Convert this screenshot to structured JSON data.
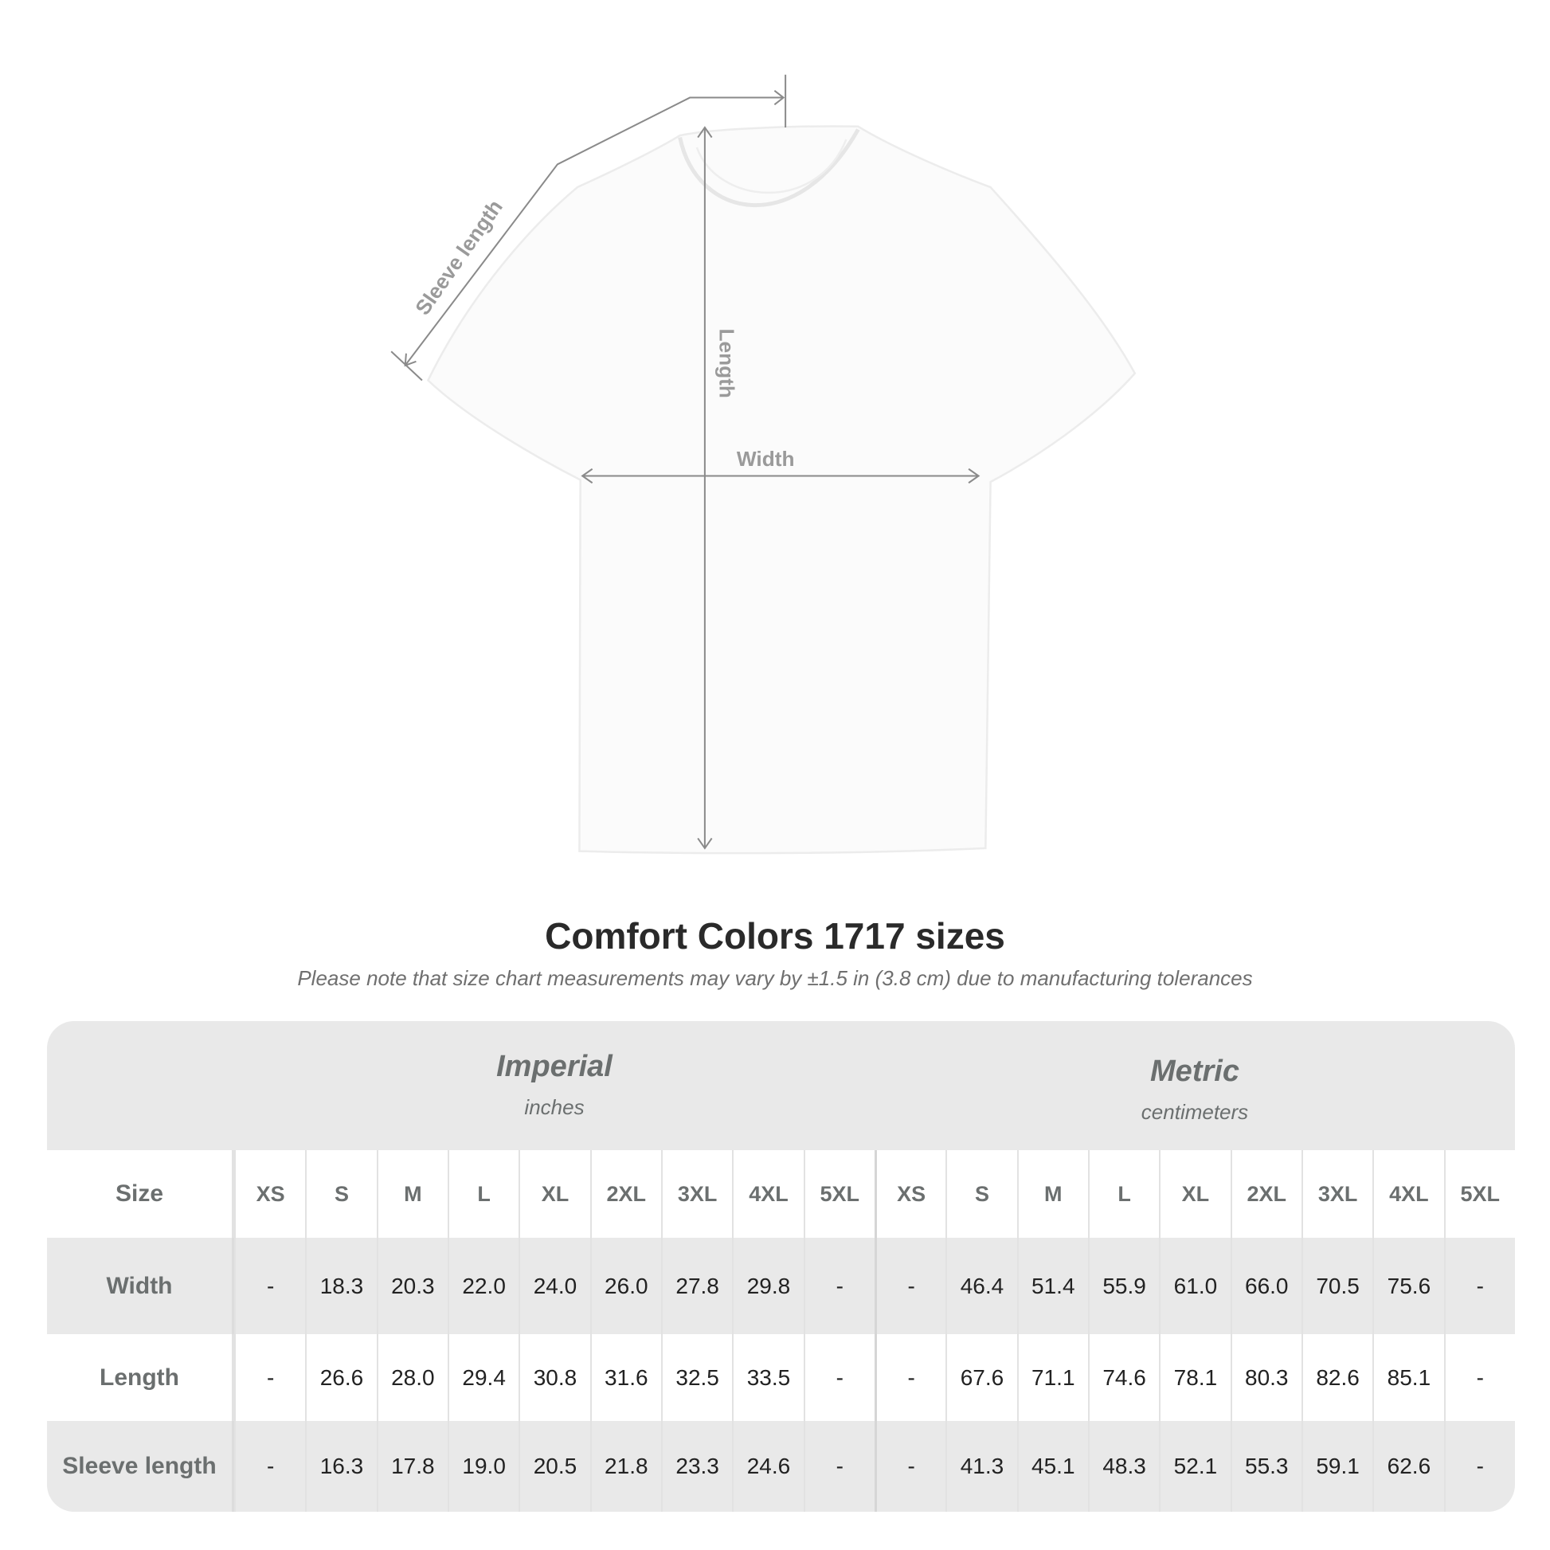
{
  "diagram": {
    "labels": {
      "sleeve": "Sleeve length",
      "length": "Length",
      "width": "Width"
    },
    "line_color": "#8a8a8a",
    "label_color": "#9a9a9a"
  },
  "title": "Comfort Colors 1717 sizes",
  "note": "Please note that size chart measurements may vary by ±1.5 in (3.8 cm) due to manufacturing tolerances",
  "table": {
    "imperial": {
      "name": "Imperial",
      "unit": "inches"
    },
    "metric": {
      "name": "Metric",
      "unit": "centimeters"
    },
    "size_label": "Size",
    "sizes": [
      "XS",
      "S",
      "M",
      "L",
      "XL",
      "2XL",
      "3XL",
      "4XL",
      "5XL"
    ],
    "rows": [
      {
        "label": "Width",
        "imperial": [
          "-",
          "18.3",
          "20.3",
          "22.0",
          "24.0",
          "26.0",
          "27.8",
          "29.8",
          "-"
        ],
        "metric": [
          "-",
          "46.4",
          "51.4",
          "55.9",
          "61.0",
          "66.0",
          "70.5",
          "75.6",
          "-"
        ]
      },
      {
        "label": "Length",
        "imperial": [
          "-",
          "26.6",
          "28.0",
          "29.4",
          "30.8",
          "31.6",
          "32.5",
          "33.5",
          "-"
        ],
        "metric": [
          "-",
          "67.6",
          "71.1",
          "74.6",
          "78.1",
          "80.3",
          "82.6",
          "85.1",
          "-"
        ]
      },
      {
        "label": "Sleeve length",
        "imperial": [
          "-",
          "16.3",
          "17.8",
          "19.0",
          "20.5",
          "21.8",
          "23.3",
          "24.6",
          "-"
        ],
        "metric": [
          "-",
          "41.3",
          "45.1",
          "48.3",
          "52.1",
          "55.3",
          "59.1",
          "62.6",
          "-"
        ]
      }
    ],
    "colors": {
      "header_bg": "#e9e9e9",
      "header_text": "#6b6f6f",
      "value_text": "#222222"
    }
  }
}
